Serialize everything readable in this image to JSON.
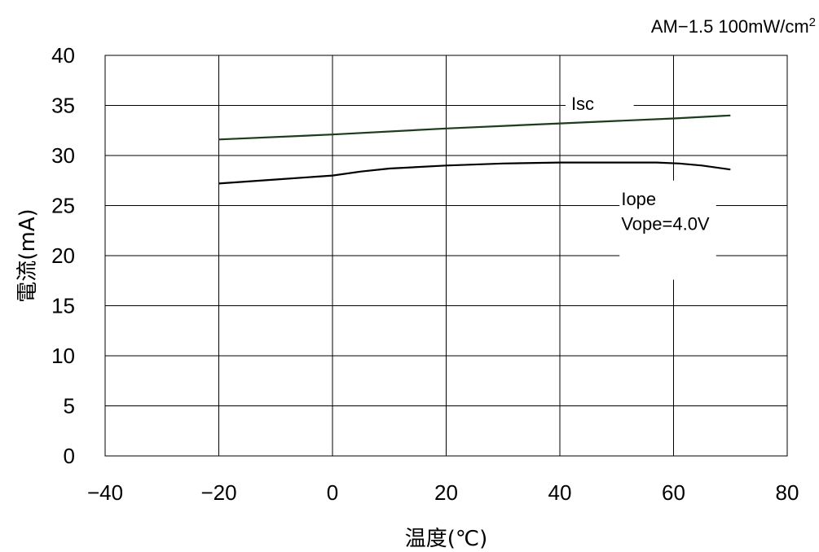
{
  "chart_data": {
    "type": "line",
    "condition": {
      "text": "AM−1.5 100mW/cm",
      "sup": "2"
    },
    "xlabel": "温度(℃)",
    "ylabel": "電流(mA)",
    "xlim": [
      -40,
      80
    ],
    "ylim": [
      0,
      40
    ],
    "xticks": [
      -40,
      -20,
      0,
      20,
      40,
      60,
      80
    ],
    "xtick_labels": [
      "−40",
      "−20",
      "0",
      "20",
      "40",
      "60",
      "80"
    ],
    "yticks": [
      0,
      5,
      10,
      15,
      20,
      25,
      30,
      35,
      40
    ],
    "ytick_labels": [
      "0",
      "5",
      "10",
      "15",
      "20",
      "25",
      "30",
      "35",
      "40"
    ],
    "grid": true,
    "series": [
      {
        "name": "Isc",
        "color": "#1a3d1a",
        "x": [
          -20,
          0,
          20,
          40,
          60,
          70
        ],
        "y": [
          31.6,
          32.1,
          32.7,
          33.2,
          33.7,
          34.0
        ]
      },
      {
        "name": "Iope",
        "subtitle": "Vope=4.0V",
        "color": "#000000",
        "x": [
          -20,
          -10,
          0,
          5,
          10,
          20,
          30,
          40,
          50,
          57,
          61,
          65,
          70
        ],
        "y": [
          27.2,
          27.6,
          28.0,
          28.4,
          28.7,
          29.0,
          29.2,
          29.3,
          29.3,
          29.3,
          29.2,
          29.0,
          28.6
        ]
      }
    ]
  }
}
